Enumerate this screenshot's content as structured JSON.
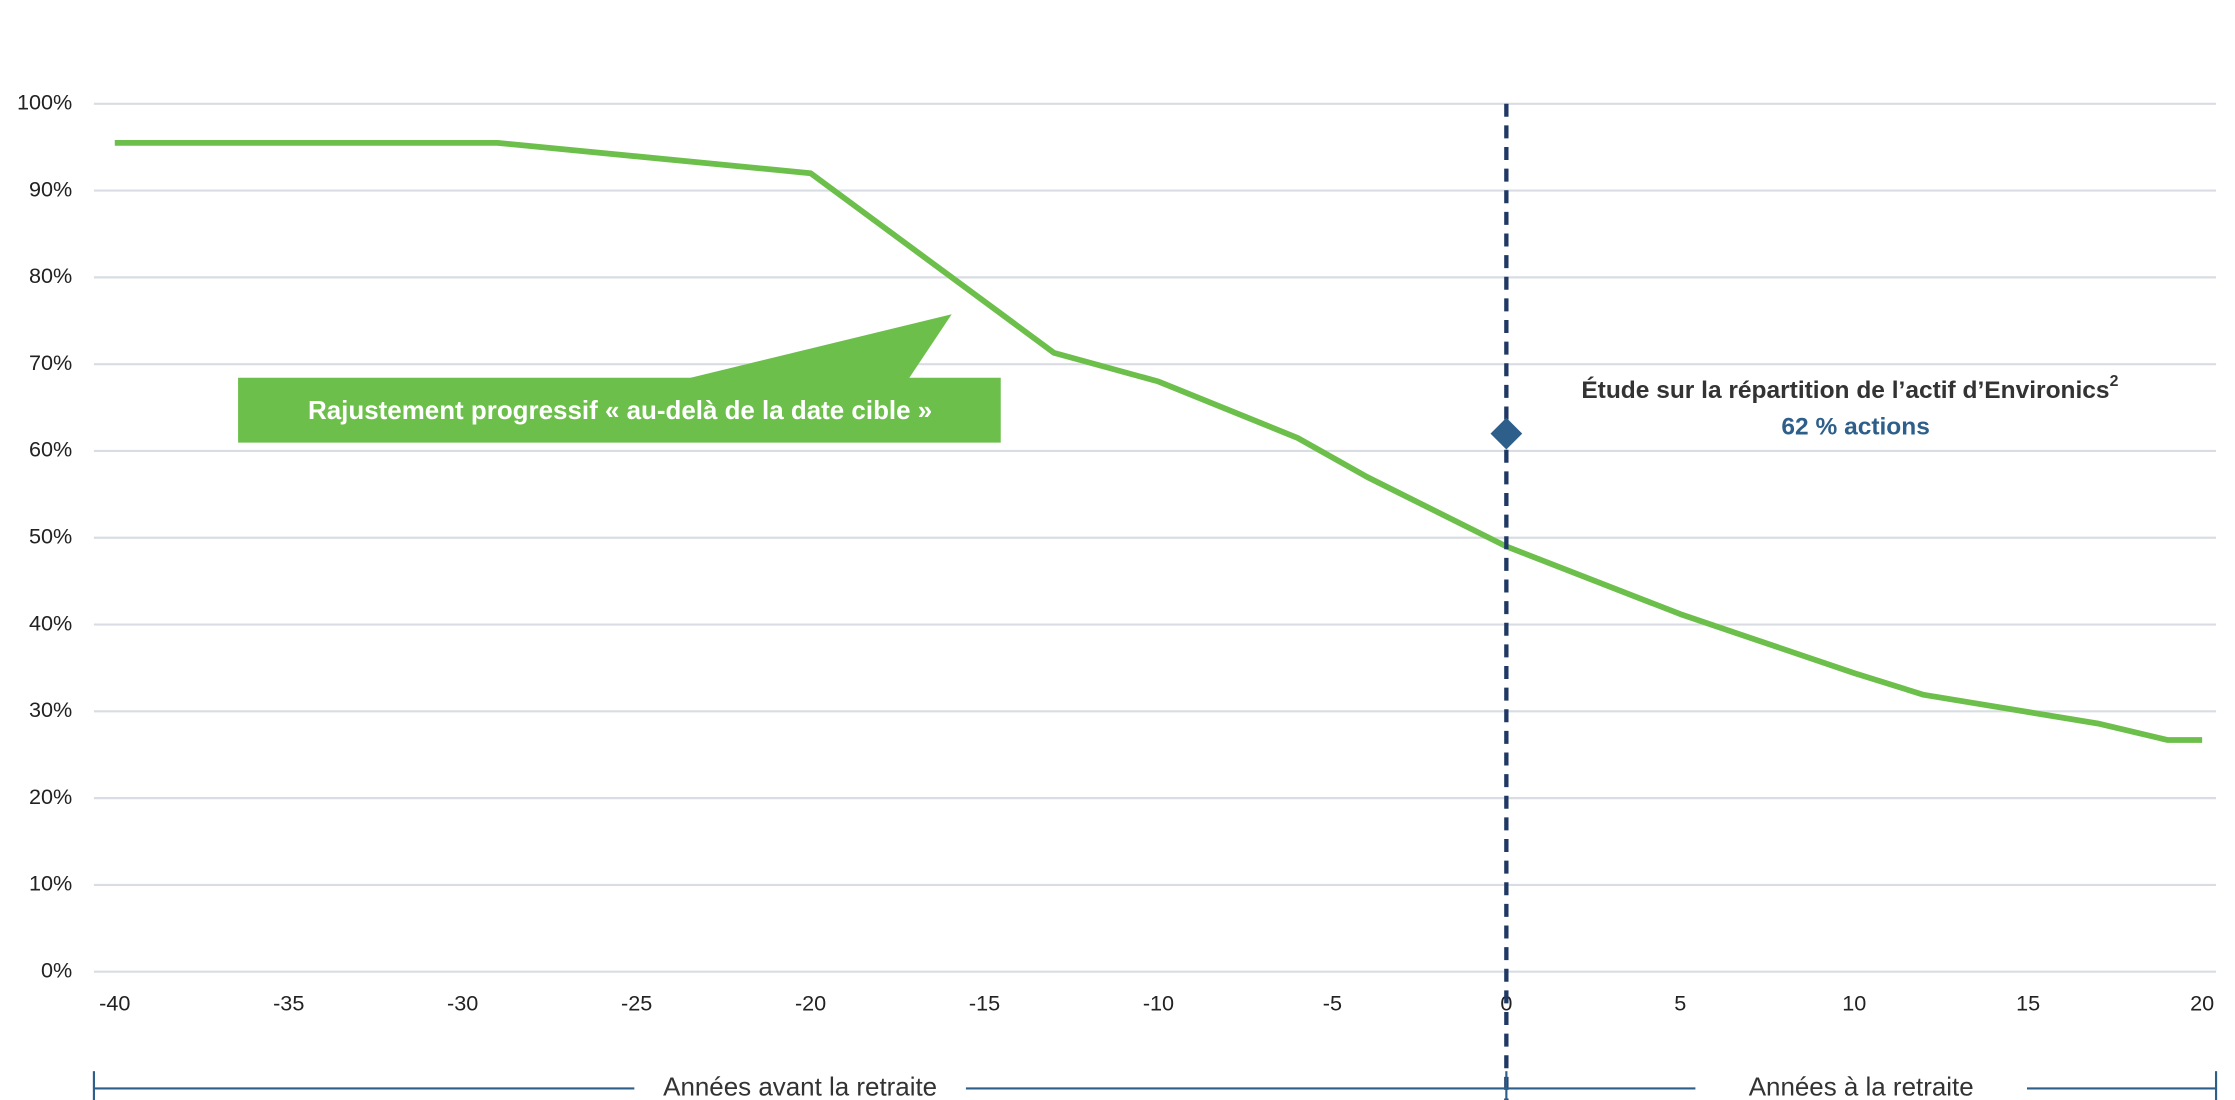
{
  "chart_data": {
    "type": "line",
    "x": [
      -40,
      -29,
      -20,
      -13,
      -10,
      -6,
      -4,
      0,
      5,
      10,
      12,
      17,
      19,
      20
    ],
    "values": [
      95.5,
      95.5,
      92,
      71.3,
      68,
      61.5,
      57,
      49,
      41.2,
      34.4,
      31.9,
      28.6,
      26.7,
      26.7
    ],
    "color": "#6cbf4a",
    "xlim": [
      -40.6,
      20.4
    ],
    "xticks": [
      -40,
      -35,
      -30,
      -25,
      -20,
      -15,
      -10,
      -5,
      0,
      5,
      10,
      15,
      20
    ],
    "ylim": [
      0,
      100
    ],
    "yticks": [
      {
        "value": 0,
        "label": "0%"
      },
      {
        "value": 10,
        "label": "10%"
      },
      {
        "value": 20,
        "label": "20%"
      },
      {
        "value": 30,
        "label": "30%"
      },
      {
        "value": 40,
        "label": "40%"
      },
      {
        "value": 50,
        "label": "50%"
      },
      {
        "value": 60,
        "label": "60%"
      },
      {
        "value": 70,
        "label": "70%"
      },
      {
        "value": 80,
        "label": "80%"
      },
      {
        "value": 90,
        "label": "90%"
      },
      {
        "value": 100,
        "label": "100%"
      }
    ],
    "grid": true,
    "callout": "Rajustement progressif « au-delà de la date cible »",
    "annotations": [
      {
        "x": 0,
        "y": 62,
        "text": "Étude sur la répartition de l’actif d’Environics",
        "sup": "2",
        "label": "62 % actions"
      }
    ],
    "x_ranges": [
      "Années avant la retraite",
      "Années à la retraite"
    ]
  }
}
